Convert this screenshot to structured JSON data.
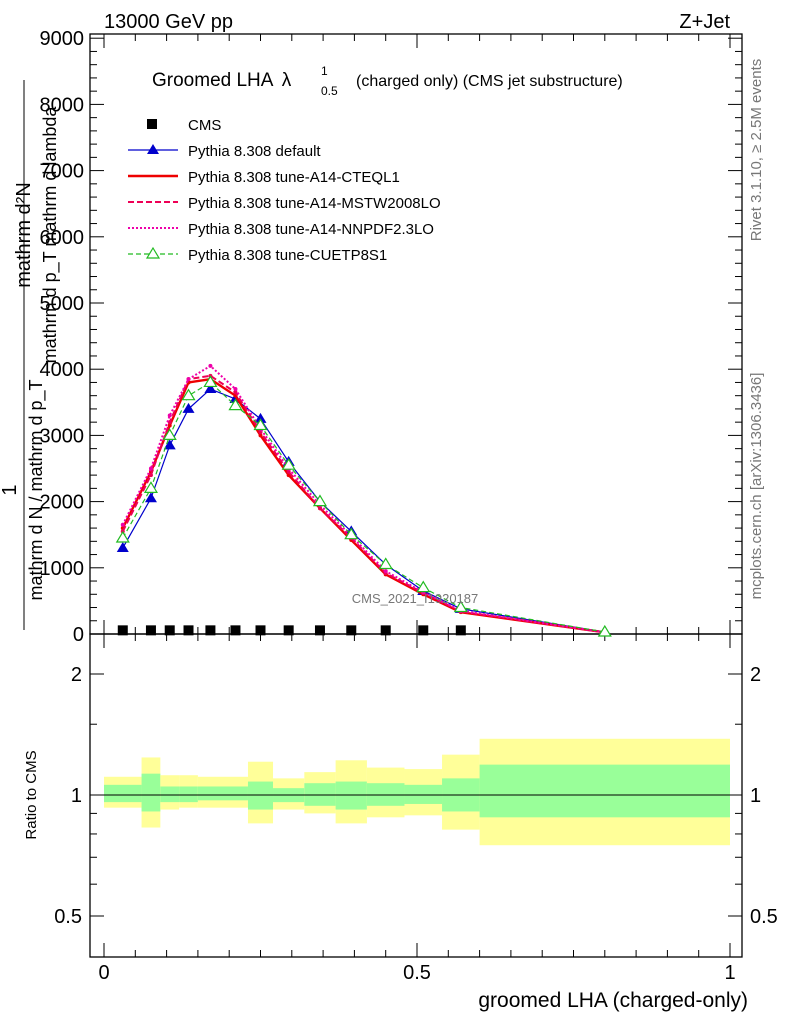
{
  "header": {
    "left": "13000 GeV pp",
    "right": "Z+Jet"
  },
  "side": {
    "rivet": "Rivet 3.1.10, ≥ 2.5M events",
    "mcplots": "mcplots.cern.ch [arXiv:1306.3436]"
  },
  "title": {
    "main": "Groomed LHA",
    "lambda": "λ",
    "sup": "1",
    "sub": "0.5",
    "rest": "(charged only) (CMS jet substructure)"
  },
  "watermark": "CMS_2021_I1920187",
  "ylabel_top": {
    "one": "1",
    "num": "mathrm d²N",
    "den": "mathrm d N / mathrm d p_T mathrm d lambda",
    "den2": "mathrm d p_T mathrm d lambda",
    "frac_den": "mathrm d N / mathrm d p_T"
  },
  "ylabel_ratio": "Ratio to CMS",
  "xlabel": "groomed LHA (charged-only)",
  "legend": [
    {
      "label": "CMS"
    },
    {
      "label": "Pythia 8.308 default"
    },
    {
      "label": "Pythia 8.308 tune-A14-CTEQL1"
    },
    {
      "label": "Pythia 8.308 tune-A14-MSTW2008LO"
    },
    {
      "label": "Pythia 8.308 tune-A14-NNPDF2.3LO"
    },
    {
      "label": "Pythia 8.308 tune-CUETP8S1"
    }
  ],
  "chart_data": {
    "type": "line",
    "xlim": [
      0,
      1
    ],
    "main_ylim": [
      0,
      9000
    ],
    "main_yticks": [
      "0",
      "1000",
      "2000",
      "3000",
      "4000",
      "5000",
      "6000",
      "7000",
      "8000",
      "9000"
    ],
    "ratio_ylim": [
      0.4,
      2.4
    ],
    "ratio_ylog": true,
    "ratio_yticks": [
      "0.5",
      "1",
      "2"
    ],
    "xticks": [
      "0",
      "0.5",
      "1"
    ],
    "x": [
      0.03,
      0.075,
      0.105,
      0.135,
      0.17,
      0.21,
      0.25,
      0.295,
      0.345,
      0.395,
      0.45,
      0.51,
      0.57,
      0.8
    ],
    "colors": {
      "cms": "#000000",
      "default": "#0000cc",
      "cteql1": "#ee0000",
      "mstw": "#ee0055",
      "nnpdf": "#ee00aa",
      "cuetp8s1": "#22bb22",
      "band_inner": "#99ff99",
      "band_outer": "#ffff99"
    },
    "cms": [
      25,
      25,
      25,
      25,
      25,
      25,
      25,
      25,
      25,
      25,
      25,
      25,
      25
    ],
    "series": [
      {
        "name": "Pythia 8.308 default",
        "key": "default",
        "values": [
          1300,
          2050,
          2850,
          3400,
          3700,
          3550,
          3250,
          2600,
          2000,
          1550,
          1050,
          650,
          380,
          30
        ]
      },
      {
        "name": "Pythia 8.308 tune-A14-CTEQL1",
        "key": "cteql1",
        "values": [
          1600,
          2450,
          3150,
          3800,
          3850,
          3600,
          3000,
          2400,
          1900,
          1420,
          900,
          600,
          330,
          25
        ]
      },
      {
        "name": "Pythia 8.308 tune-A14-MSTW2008LO",
        "key": "mstw",
        "values": [
          1550,
          2400,
          3200,
          3850,
          3900,
          3650,
          3050,
          2450,
          1900,
          1450,
          920,
          620,
          340,
          25
        ]
      },
      {
        "name": "Pythia 8.308 tune-A14-NNPDF2.3LO",
        "key": "nnpdf",
        "values": [
          1650,
          2500,
          3300,
          3850,
          4050,
          3700,
          3100,
          2500,
          1950,
          1480,
          950,
          630,
          350,
          25
        ]
      },
      {
        "name": "Pythia 8.308 tune-CUETP8S1",
        "key": "cuetp8s1",
        "values": [
          1450,
          2200,
          3000,
          3600,
          3800,
          3450,
          3150,
          2550,
          2000,
          1500,
          1050,
          700,
          400,
          30
        ]
      }
    ],
    "ratio_bins": [
      {
        "x0": 0.0,
        "x1": 0.06,
        "in_lo": 0.96,
        "in_hi": 1.06,
        "out_lo": 0.93,
        "out_hi": 1.11
      },
      {
        "x0": 0.06,
        "x1": 0.09,
        "in_lo": 0.91,
        "in_hi": 1.13,
        "out_lo": 0.83,
        "out_hi": 1.24
      },
      {
        "x0": 0.09,
        "x1": 0.12,
        "in_lo": 0.96,
        "in_hi": 1.05,
        "out_lo": 0.92,
        "out_hi": 1.12
      },
      {
        "x0": 0.12,
        "x1": 0.15,
        "in_lo": 0.96,
        "in_hi": 1.05,
        "out_lo": 0.93,
        "out_hi": 1.12
      },
      {
        "x0": 0.15,
        "x1": 0.23,
        "in_lo": 0.97,
        "in_hi": 1.05,
        "out_lo": 0.93,
        "out_hi": 1.11
      },
      {
        "x0": 0.23,
        "x1": 0.27,
        "in_lo": 0.92,
        "in_hi": 1.08,
        "out_lo": 0.85,
        "out_hi": 1.21
      },
      {
        "x0": 0.27,
        "x1": 0.32,
        "in_lo": 0.96,
        "in_hi": 1.04,
        "out_lo": 0.92,
        "out_hi": 1.1
      },
      {
        "x0": 0.32,
        "x1": 0.37,
        "in_lo": 0.94,
        "in_hi": 1.07,
        "out_lo": 0.9,
        "out_hi": 1.14
      },
      {
        "x0": 0.37,
        "x1": 0.42,
        "in_lo": 0.92,
        "in_hi": 1.08,
        "out_lo": 0.85,
        "out_hi": 1.22
      },
      {
        "x0": 0.42,
        "x1": 0.48,
        "in_lo": 0.94,
        "in_hi": 1.07,
        "out_lo": 0.88,
        "out_hi": 1.17
      },
      {
        "x0": 0.48,
        "x1": 0.54,
        "in_lo": 0.95,
        "in_hi": 1.06,
        "out_lo": 0.89,
        "out_hi": 1.16
      },
      {
        "x0": 0.54,
        "x1": 0.6,
        "in_lo": 0.91,
        "in_hi": 1.1,
        "out_lo": 0.82,
        "out_hi": 1.26
      },
      {
        "x0": 0.6,
        "x1": 1.0,
        "in_lo": 0.88,
        "in_hi": 1.19,
        "out_lo": 0.75,
        "out_hi": 1.38
      }
    ]
  }
}
